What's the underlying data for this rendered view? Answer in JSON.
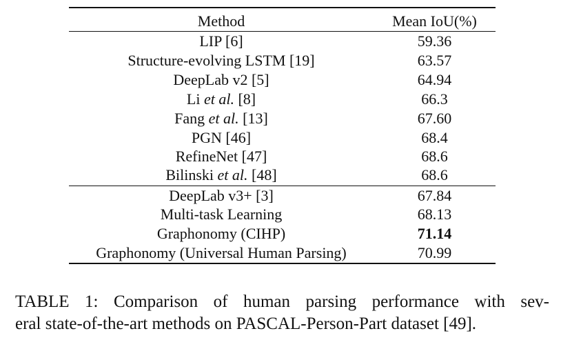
{
  "table": {
    "header": {
      "method": "Method",
      "miou": "Mean IoU(%)"
    },
    "group1": [
      {
        "method": "LIP [6]",
        "miou": "59.36"
      },
      {
        "method_pre": "Structure-evolving LSTM [19]",
        "miou": "63.57"
      },
      {
        "method": "DeepLab v2 [5]",
        "miou": "64.94"
      },
      {
        "method_pre": "Li ",
        "method_em": "et al.",
        "method_post": " [8]",
        "miou": "66.3"
      },
      {
        "method_pre": "Fang ",
        "method_em": "et al.",
        "method_post": " [13]",
        "miou": "67.60"
      },
      {
        "method": "PGN [46]",
        "miou": "68.4"
      },
      {
        "method": "RefineNet [47]",
        "miou": "68.6"
      },
      {
        "method_pre": "Bilinski ",
        "method_em": "et al.",
        "method_post": " [48]",
        "miou": "68.6"
      }
    ],
    "group2": [
      {
        "method": "DeepLab v3+ [3]",
        "miou": "67.84"
      },
      {
        "method": "Multi-task Learning",
        "miou": "68.13"
      },
      {
        "method": "Graphonomy (CIHP)",
        "miou": "71.14"
      },
      {
        "method": "Graphonomy (Universal Human Parsing)",
        "miou": "70.99"
      }
    ]
  },
  "caption": {
    "line1": "TABLE 1: Comparison of human parsing performance with sev-",
    "line2": "eral state-of-the-art methods on PASCAL-Person-Part dataset [49]."
  }
}
